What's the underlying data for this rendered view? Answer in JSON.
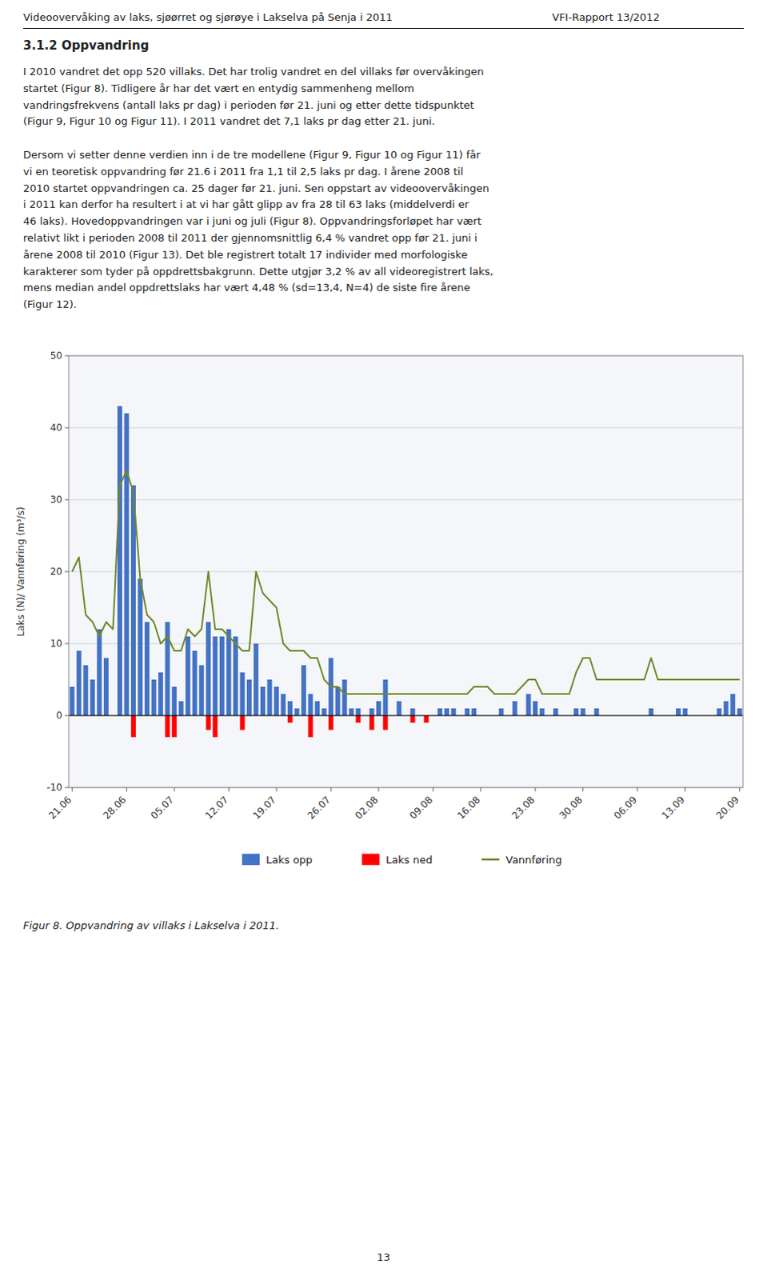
{
  "chart_data": {
    "type": "bar",
    "ylabel": "Laks (N)/ Vannføring (m³/s)",
    "annotations": [
      "Videoovervåking av laks, sjøørret og sjørøye i Lakselva på Senja i 2011",
      "VFI-Rapport  13/2012",
      "3.1.2 Oppvandring",
      "I 2010 vandret det opp 520 villaks. Det har trolig vandret en del villaks før overvåkingen\nstartet (Figur 8). Tidligere år har det vært en entydig sammenheng mellom\nvandringsfrekvens (antall laks pr dag) i perioden før 21. juni og etter dette tidspunktet\n(Figur 9, Figur 10 og Figur 11). I 2011 vandret det 7,1 laks pr dag etter 21. juni.\n\nDersom vi setter denne verdien inn i de tre modellene (Figur 9, Figur 10 og Figur 11) får\nvi en teoretisk oppvandring før 21.6 i 2011 fra 1,1 til 2,5 laks pr dag. I årene 2008 til\n2010 startet oppvandringen ca. 25 dager før 21. juni. Sen oppstart av videoovervåkingen\ni 2011 kan derfor ha resultert i at vi har gått glipp av fra 28 til 63 laks (middelverdi er\n46 laks). Hovedoppvandringen var i juni og juli (Figur 8). Oppvandringsforløpet har vært\nrelativt likt i perioden 2008 til 2011 der gjennomsnittlig 6,4 % vandret opp før 21. juni i\nårene 2008 til 2010 (Figur 13). Det ble registrert totalt 17 individer med morfologiske\nkarakterer som tyder på oppdrettsbakgrunn. Dette utgjør 3,2 % av all videoregistrert laks,\nmens median andel oppdrettslaks har vært 4,48 % (sd=13,4, N=4) de siste fire årene\n(Figur 12).",
      "Figur 8. Oppvandring av villaks i Lakselva i 2011.",
      "13"
    ],
    "categories": [
      "21.06",
      null,
      null,
      null,
      null,
      null,
      null,
      null,
      "28.06",
      null,
      null,
      null,
      null,
      null,
      null,
      "05.07",
      null,
      null,
      null,
      null,
      null,
      null,
      null,
      "12.07",
      null,
      null,
      null,
      null,
      null,
      null,
      "19.07",
      null,
      null,
      null,
      null,
      null,
      null,
      null,
      "26.07",
      null,
      null,
      null,
      null,
      null,
      null,
      "02.08",
      null,
      null,
      null,
      null,
      null,
      null,
      null,
      "09.08",
      null,
      null,
      null,
      null,
      null,
      null,
      "16.08",
      null,
      null,
      null,
      null,
      null,
      null,
      null,
      "23.08",
      null,
      null,
      null,
      null,
      null,
      null,
      "30.08",
      null,
      null,
      null,
      null,
      null,
      null,
      null,
      "06.09",
      null,
      null,
      null,
      null,
      null,
      null,
      "13.09",
      null,
      null,
      null,
      null,
      null,
      null,
      null,
      "20.09"
    ],
    "series": [
      {
        "name": "Laks opp",
        "type": "bar",
        "color": "#4472C4",
        "values": [
          4,
          9,
          7,
          5,
          12,
          8,
          0,
          43,
          42,
          32,
          19,
          13,
          5,
          6,
          13,
          4,
          2,
          11,
          9,
          7,
          13,
          11,
          11,
          12,
          11,
          6,
          5,
          10,
          4,
          5,
          4,
          3,
          2,
          1,
          7,
          3,
          2,
          1,
          8,
          4,
          5,
          1,
          1,
          0,
          1,
          2,
          5,
          0,
          2,
          0,
          1,
          0,
          0,
          0,
          1,
          1,
          1,
          0,
          1,
          1,
          0,
          0,
          0,
          1,
          0,
          2,
          0,
          3,
          2,
          1,
          0,
          1,
          0,
          0,
          1,
          1,
          0,
          1,
          0,
          0,
          0,
          0,
          0,
          0,
          0,
          1,
          0,
          0,
          0,
          1,
          1,
          0,
          0,
          0,
          0,
          1,
          2,
          3,
          1
        ]
      },
      {
        "name": "Laks ned",
        "type": "bar",
        "color": "#FF0000",
        "values": [
          0,
          0,
          0,
          0,
          0,
          0,
          0,
          0,
          0,
          -3,
          0,
          0,
          0,
          0,
          -3,
          -3,
          0,
          0,
          0,
          0,
          -2,
          -3,
          0,
          0,
          0,
          -2,
          0,
          0,
          0,
          0,
          0,
          0,
          -1,
          0,
          0,
          -3,
          0,
          0,
          -2,
          0,
          0,
          0,
          -1,
          0,
          -2,
          0,
          -2,
          0,
          0,
          0,
          -1,
          0,
          -1,
          0,
          0,
          0,
          0,
          0,
          0,
          0,
          0,
          0,
          0,
          0,
          0,
          0,
          0,
          0,
          0,
          0,
          0,
          0,
          0,
          0,
          0,
          0,
          0,
          0,
          0,
          0,
          0,
          0,
          0,
          0,
          0,
          0,
          0,
          0,
          0,
          0,
          0,
          0,
          0,
          0,
          0,
          0,
          0,
          0,
          0
        ]
      },
      {
        "name": "Vannføring",
        "type": "line",
        "color": "#70882A",
        "values": [
          20,
          22,
          14,
          13,
          11,
          13,
          12,
          32,
          34,
          31,
          19,
          14,
          13,
          10,
          11,
          9,
          9,
          12,
          11,
          12,
          20,
          12,
          12,
          11,
          10,
          9,
          9,
          20,
          17,
          16,
          15,
          10,
          9,
          9,
          9,
          8,
          8,
          5,
          4,
          4,
          3,
          3,
          3,
          3,
          3,
          3,
          3,
          3,
          3,
          3,
          3,
          3,
          3,
          3,
          3,
          3,
          3,
          3,
          3,
          4,
          4,
          4,
          3,
          3,
          3,
          3,
          4,
          5,
          5,
          3,
          3,
          3,
          3,
          3,
          6,
          8,
          8,
          5,
          5,
          5,
          5,
          5,
          5,
          5,
          5,
          8,
          5,
          5,
          5,
          5,
          5,
          5,
          5,
          5,
          5,
          5,
          5,
          5,
          5
        ]
      }
    ],
    "ylim": [
      -10,
      50
    ],
    "yticks": [
      -10,
      0,
      10,
      20,
      30,
      40,
      50
    ],
    "grid": true,
    "legend": "bottom"
  }
}
